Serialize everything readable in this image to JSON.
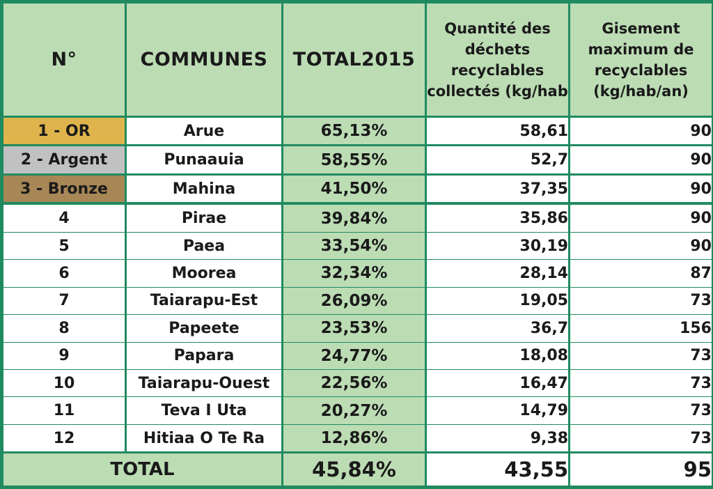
{
  "table": {
    "headers": [
      "N°",
      "COMMUNES",
      "TOTAL2015",
      "Quantité des déchets recyclables collectés (kg/hab",
      "Gisement maximum de recyclables (kg/hab/an)"
    ],
    "podium": [
      {
        "rank": "1 - OR",
        "commune": "Arue",
        "total": "65,13%",
        "quantite": "58,61",
        "gisement": "90"
      },
      {
        "rank": "2 - Argent",
        "commune": "Punaauia",
        "total": "58,55%",
        "quantite": "52,7",
        "gisement": "90"
      },
      {
        "rank": "3 - Bronze",
        "commune": "Mahina",
        "total": "41,50%",
        "quantite": "37,35",
        "gisement": "90"
      }
    ],
    "rows": [
      {
        "rank": "4",
        "commune": "Pirae",
        "total": "39,84%",
        "quantite": "35,86",
        "gisement": "90"
      },
      {
        "rank": "5",
        "commune": "Paea",
        "total": "33,54%",
        "quantite": "30,19",
        "gisement": "90"
      },
      {
        "rank": "6",
        "commune": "Moorea",
        "total": "32,34%",
        "quantite": "28,14",
        "gisement": "87"
      },
      {
        "rank": "7",
        "commune": "Taiarapu-Est",
        "total": "26,09%",
        "quantite": "19,05",
        "gisement": "73"
      },
      {
        "rank": "8",
        "commune": "Papeete",
        "total": "23,53%",
        "quantite": "36,7",
        "gisement": "156"
      },
      {
        "rank": "9",
        "commune": "Papara",
        "total": "24,77%",
        "quantite": "18,08",
        "gisement": "73"
      },
      {
        "rank": "10",
        "commune": "Taiarapu-Ouest",
        "total": "22,56%",
        "quantite": "16,47",
        "gisement": "73"
      },
      {
        "rank": "11",
        "commune": "Teva I Uta",
        "total": "20,27%",
        "quantite": "14,79",
        "gisement": "73"
      },
      {
        "rank": "12",
        "commune": "Hitiaa O Te Ra",
        "total": "12,86%",
        "quantite": "9,38",
        "gisement": "73"
      }
    ],
    "footer": {
      "label": "TOTAL",
      "total": "45,84%",
      "quantite": "43,55",
      "gisement": "95"
    }
  },
  "colors": {
    "border": "#1f8a60",
    "header_fill": "#bcdcb4",
    "gold": "#dfb44c",
    "silver": "#c1c1c1",
    "bronze": "#a88757"
  }
}
